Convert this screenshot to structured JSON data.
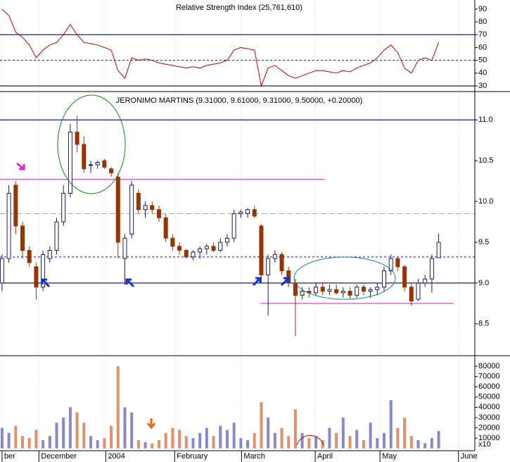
{
  "chart_data": [
    {
      "type": "line",
      "title": "Relative Strength Index (25,761,610)",
      "color": "#cc0000",
      "xlim": [
        -0.3,
        69.3
      ],
      "ylim": [
        25.6,
        97.1
      ],
      "yticks": [
        30,
        40,
        50,
        60,
        70,
        80,
        90
      ],
      "hlines": [
        {
          "value": 70,
          "style": "solid"
        },
        {
          "value": 50,
          "style": "dashed"
        },
        {
          "value": 30,
          "style": "solid"
        }
      ],
      "values": [
        90,
        85,
        72,
        68,
        62,
        52,
        58,
        62,
        64,
        70,
        78,
        70,
        64,
        63,
        62,
        60,
        58,
        42,
        36,
        52,
        50,
        51,
        50,
        48,
        47,
        46,
        45,
        44,
        45,
        44,
        46,
        47,
        48,
        50,
        58,
        60,
        59,
        58,
        30,
        44,
        46,
        42,
        38,
        36,
        38,
        40,
        42,
        42,
        41,
        40,
        42,
        41,
        44,
        46,
        48,
        52,
        58,
        62,
        56,
        44,
        40,
        50,
        52,
        50,
        64
      ]
    },
    {
      "type": "candlestick",
      "title": "JERONIMO MARTINS (9.31000, 9.61000, 9.31000, 9.50000, +0.20000)",
      "up_color": "#ffffff",
      "down_color": "#993300",
      "outline_color": "#1a1a66",
      "xlim": [
        -0.3,
        69.3
      ],
      "ylim": [
        8.11,
        11.33
      ],
      "yticks": [
        8.5,
        {
          "value": 9,
          "label": "9.0"
        },
        9.5,
        {
          "value": 10,
          "label": "10.0"
        },
        10.5,
        {
          "value": 11,
          "label": "11.0"
        }
      ],
      "hlines": [
        {
          "value": 11,
          "style": "solid"
        },
        {
          "value": 9,
          "style": "solid"
        },
        {
          "value": 9.32,
          "style": "dashed"
        },
        {
          "value": 9.85,
          "style": "grey"
        }
      ],
      "support_lines": [
        {
          "value": 10.27,
          "from": -0.3,
          "to": 47.3
        },
        {
          "value": 8.75,
          "from": 37.9,
          "to": 66.2
        }
      ],
      "open": [
        9.0,
        9.3,
        10.2,
        9.7,
        9.4,
        9.2,
        8.95,
        9.3,
        9.4,
        9.75,
        10.1,
        10.85,
        10.7,
        10.45,
        10.45,
        10.5,
        10.4,
        10.3,
        9.3,
        9.6,
        10.1,
        9.9,
        9.95,
        9.9,
        9.8,
        9.55,
        9.45,
        9.4,
        9.32,
        9.38,
        9.42,
        9.45,
        9.4,
        9.5,
        9.55,
        9.85,
        9.85,
        9.9,
        9.7,
        9.1,
        9.3,
        9.35,
        9.15,
        9.0,
        8.85,
        8.9,
        8.88,
        8.95,
        8.9,
        8.92,
        8.88,
        8.9,
        8.85,
        8.95,
        8.9,
        8.92,
        8.95,
        9.15,
        9.3,
        9.2,
        8.95,
        8.8,
        9.0,
        9.05,
        9.31
      ],
      "high": [
        9.35,
        10.2,
        10.25,
        9.75,
        9.45,
        9.25,
        9.4,
        9.45,
        9.8,
        10.2,
        10.95,
        11.05,
        10.8,
        10.5,
        10.5,
        10.52,
        10.42,
        10.35,
        9.6,
        10.25,
        10.15,
        10.0,
        10.0,
        9.95,
        9.85,
        9.6,
        9.5,
        9.42,
        9.4,
        9.45,
        9.48,
        9.5,
        9.55,
        9.6,
        9.9,
        9.9,
        9.92,
        9.95,
        9.72,
        9.35,
        9.4,
        9.38,
        9.2,
        9.05,
        8.95,
        8.95,
        9.0,
        9.0,
        8.98,
        8.98,
        8.95,
        8.95,
        8.98,
        8.98,
        8.95,
        9.0,
        9.2,
        9.35,
        9.32,
        9.22,
        9.0,
        9.05,
        9.1,
        9.35,
        9.61
      ],
      "low": [
        8.9,
        9.25,
        9.6,
        9.3,
        9.2,
        8.8,
        8.9,
        9.25,
        9.35,
        9.7,
        10.05,
        10.6,
        10.35,
        10.35,
        10.4,
        10.4,
        10.3,
        9.3,
        8.98,
        9.55,
        9.85,
        9.8,
        9.85,
        9.75,
        9.5,
        9.4,
        9.35,
        9.3,
        9.28,
        9.3,
        9.35,
        9.38,
        9.38,
        9.45,
        9.5,
        9.8,
        9.8,
        9.8,
        9.0,
        8.6,
        9.25,
        9.1,
        8.95,
        8.35,
        8.8,
        8.82,
        8.85,
        8.85,
        8.85,
        8.86,
        8.82,
        8.8,
        8.82,
        8.85,
        8.82,
        8.85,
        8.9,
        9.1,
        9.15,
        8.9,
        8.72,
        8.78,
        8.95,
        8.88,
        9.31
      ],
      "close": [
        9.3,
        10.1,
        9.7,
        9.4,
        9.25,
        8.95,
        9.35,
        9.4,
        9.75,
        10.1,
        10.85,
        10.7,
        10.4,
        10.45,
        10.48,
        10.42,
        10.35,
        9.5,
        9.55,
        10.2,
        9.9,
        9.95,
        9.9,
        9.8,
        9.55,
        9.45,
        9.4,
        9.32,
        9.38,
        9.42,
        9.45,
        9.4,
        9.5,
        9.55,
        9.85,
        9.87,
        9.9,
        9.82,
        9.1,
        9.3,
        9.35,
        9.15,
        9.0,
        8.85,
        8.9,
        8.88,
        8.95,
        8.9,
        8.92,
        8.88,
        8.9,
        8.85,
        8.95,
        8.9,
        8.92,
        8.95,
        9.15,
        9.3,
        9.2,
        8.95,
        8.78,
        9.0,
        9.05,
        9.3,
        9.5
      ]
    },
    {
      "type": "bar",
      "up_color": "#8888cc",
      "down_color": "#e0906c",
      "unit_label": "x10",
      "xlim": [
        -0.3,
        69.3
      ],
      "ylim": [
        -2300,
        90300
      ],
      "yticks": [
        10000,
        20000,
        30000,
        40000,
        50000,
        60000,
        70000,
        80000
      ],
      "xticks": [
        {
          "value": 0,
          "label": "ber"
        },
        {
          "value": 5.4,
          "label": "December"
        },
        {
          "value": 15.2,
          "label": "2004"
        },
        {
          "value": 25.3,
          "label": "February"
        },
        {
          "value": 35.1,
          "label": "March"
        },
        {
          "value": 45.9,
          "label": "April"
        },
        {
          "value": 55.4,
          "label": "May"
        },
        {
          "value": 66.9,
          "label": "June"
        }
      ],
      "values": [
        20000,
        15000,
        22000,
        12000,
        10000,
        18000,
        8000,
        12000,
        25000,
        30000,
        40000,
        35000,
        25000,
        12000,
        8000,
        10000,
        22000,
        80000,
        40000,
        35000,
        8000,
        6000,
        5000,
        8000,
        15000,
        20000,
        18000,
        12000,
        10000,
        15000,
        20000,
        12000,
        22000,
        18000,
        25000,
        10000,
        8000,
        15000,
        45000,
        30000,
        15000,
        20000,
        12000,
        38000,
        15000,
        10000,
        12000,
        8000,
        20000,
        15000,
        30000,
        12000,
        18000,
        8000,
        25000,
        10000,
        15000,
        47000,
        20000,
        30000,
        12000,
        8000,
        5000,
        10000,
        17000
      ]
    }
  ]
}
